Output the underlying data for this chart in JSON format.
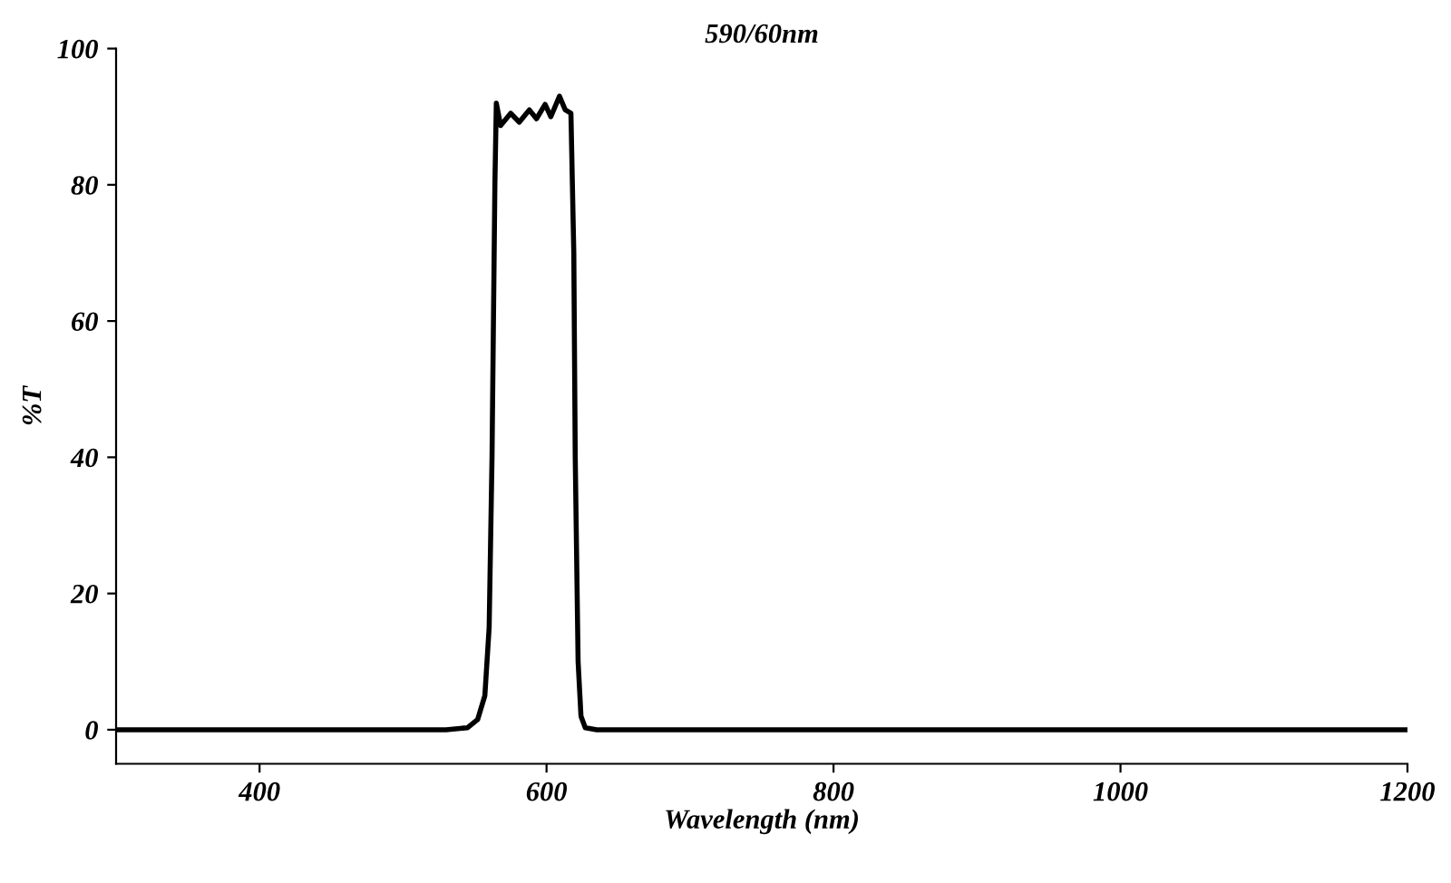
{
  "chart_data": {
    "type": "line",
    "title": "590/60nm",
    "xlabel": "Wavelength (nm)",
    "ylabel": "%T",
    "x": [
      300,
      530,
      545,
      552,
      557,
      560,
      562,
      564,
      565,
      568,
      575,
      581,
      588,
      593,
      599,
      603,
      609,
      613,
      617,
      619,
      620,
      622,
      624,
      627,
      635,
      1200
    ],
    "series": [
      {
        "color": "#000000",
        "values": [
          0,
          0,
          0.3,
          1.5,
          5,
          15,
          40,
          80,
          92,
          88.7,
          90.5,
          89.2,
          91,
          89.7,
          91.8,
          90,
          93,
          91,
          90.5,
          70,
          40,
          10,
          2,
          0.3,
          0,
          0
        ]
      }
    ],
    "xlim": [
      300,
      1200
    ],
    "ylim": [
      -5,
      100
    ],
    "xticks": [
      400,
      600,
      800,
      1000,
      1200
    ],
    "yticks": [
      0,
      20,
      40,
      60,
      80,
      100
    ],
    "grid": false,
    "legend": false,
    "marker": "none",
    "line_style": "solid"
  }
}
